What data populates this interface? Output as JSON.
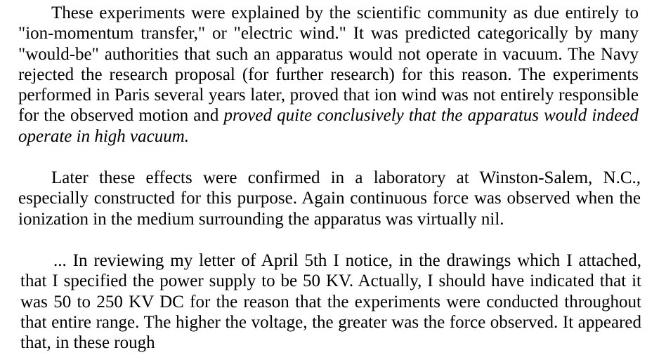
{
  "paragraphs": [
    {
      "text_before_emphasis": "These experiments were explained by the scientific community as due entirely to \"ion-momentum transfer,\" or \"electric wind.\" It was predicted categorically by many \"would-be\" authorities that such an apparatus would not operate in vacuum. The Navy rejected the research proposal (for further research) for this reason. The experiments performed in Paris several years later, proved that ion wind was not entirely responsible for the observed motion and ",
      "emphasis": "proved quite conclusively that the apparatus would indeed operate in high vacuum."
    },
    {
      "text": "Later these effects were confirmed in a laboratory at Winston-Salem, N.C., especially constructed for this purpose. Again continuous force was observed when the ionization in the medium surrounding the apparatus was virtually nil."
    },
    {
      "text": "... In reviewing my letter of April 5th I notice, in the drawings which I attached, that I specified the power supply to be 50 KV. Actually, I should have indicated that it was 50 to 250 KV DC for the reason that the experiments were conducted throughout that entire range. The higher the voltage, the greater was the force observed. It appeared that, in these rough"
    }
  ]
}
